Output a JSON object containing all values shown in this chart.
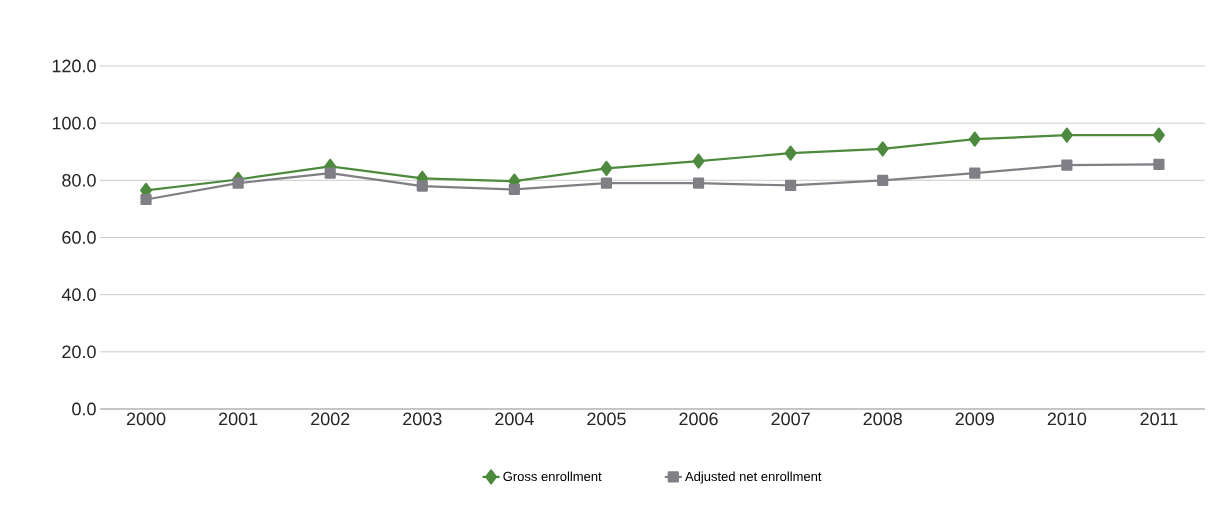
{
  "chart_data": {
    "type": "line",
    "categories": [
      "2000",
      "2001",
      "2002",
      "2003",
      "2004",
      "2005",
      "2006",
      "2007",
      "2008",
      "2009",
      "2010",
      "2011"
    ],
    "series": [
      {
        "name": "Gross enrollment",
        "color": "#4e8a3e",
        "marker": "diamond",
        "values": [
          76.5,
          80.3,
          84.9,
          80.7,
          79.7,
          84.2,
          86.7,
          89.5,
          91.0,
          94.4,
          95.8,
          95.8
        ]
      },
      {
        "name": "Adjusted net enrollment",
        "color": "#7f7f85",
        "marker": "square",
        "values": [
          73.3,
          79.0,
          82.5,
          78.0,
          76.8,
          79.0,
          79.0,
          78.2,
          80.0,
          82.5,
          85.3,
          85.6
        ]
      }
    ],
    "ylim": [
      0,
      120
    ],
    "yticks": [
      {
        "value": 0,
        "label": "0.0"
      },
      {
        "value": 20,
        "label": "20.0"
      },
      {
        "value": 40,
        "label": "40.0"
      },
      {
        "value": 60,
        "label": "60.0"
      },
      {
        "value": 80,
        "label": "80.0"
      },
      {
        "value": 100,
        "label": "100.0"
      },
      {
        "value": 120,
        "label": "120.0"
      }
    ],
    "grid": "y",
    "legend": "bottom",
    "line_style": "solid"
  }
}
